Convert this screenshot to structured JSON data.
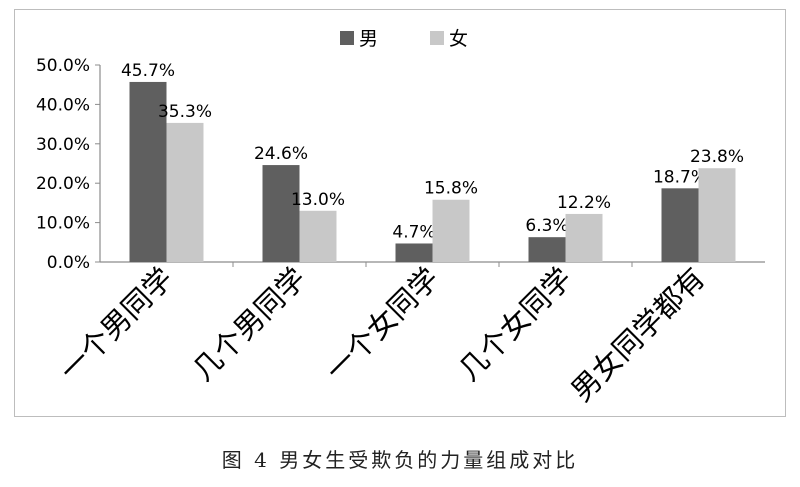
{
  "caption": "图 4   男女生受欺负的力量组成对比",
  "chart_data": {
    "type": "bar",
    "categories": [
      "一个男同学",
      "几个男同学",
      "一个女同学",
      "几个女同学",
      "男女同学都有"
    ],
    "series": [
      {
        "name": "男",
        "color": "#5f5f5f",
        "values": [
          45.7,
          24.6,
          4.7,
          6.3,
          18.7
        ],
        "labels": [
          "45.7%",
          "24.6%",
          "4.7%",
          "6.3%",
          "18.7%"
        ]
      },
      {
        "name": "女",
        "color": "#c8c8c8",
        "values": [
          35.3,
          13.0,
          15.8,
          12.2,
          23.8
        ],
        "labels": [
          "35.3%",
          "13.0%",
          "15.8%",
          "12.2%",
          "23.8%"
        ]
      }
    ],
    "yticks": [
      "0.0%",
      "10.0%",
      "20.0%",
      "30.0%",
      "40.0%",
      "50.0%"
    ],
    "ylim": [
      0,
      50
    ],
    "grid": false,
    "legend": "top-center"
  }
}
